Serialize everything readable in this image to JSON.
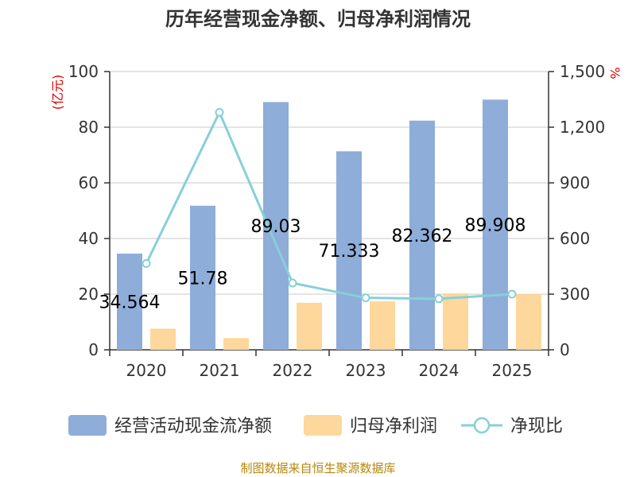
{
  "chart_data": {
    "type": "bar",
    "title": "历年经营现金净额、归母净利润情况",
    "categories": [
      "2020",
      "2021",
      "2022",
      "2023",
      "2024",
      "2025"
    ],
    "left_unit": "(亿元)",
    "right_unit": "%",
    "left_axis": {
      "min": 0,
      "max": 100,
      "ticks": [
        "0",
        "20",
        "40",
        "60",
        "80",
        "100"
      ]
    },
    "right_axis": {
      "min": 0,
      "max": 1500,
      "ticks": [
        "0",
        "300",
        "600",
        "900",
        "1,200",
        "1,500"
      ]
    },
    "grid": true,
    "legend_position": "bottom",
    "series": [
      {
        "name": "经营活动现金流净额",
        "type": "bar",
        "axis": "left",
        "color": "#8eadd9",
        "values": [
          34.564,
          51.78,
          89.03,
          71.333,
          82.362,
          89.908
        ],
        "labels": [
          "34.564",
          "51.78",
          "89.03",
          "71.333",
          "82.362",
          "89.908"
        ]
      },
      {
        "name": "归母净利润",
        "type": "bar",
        "axis": "left",
        "color": "#fdd79b",
        "values": [
          7.6,
          4.2,
          16.9,
          17.4,
          20.3,
          20.1
        ]
      },
      {
        "name": "净现比",
        "type": "line",
        "axis": "right",
        "color": "#86d0d8",
        "values": [
          465,
          1280,
          360,
          280,
          275,
          300
        ]
      }
    ]
  },
  "source": "制图数据来自恒生聚源数据库"
}
